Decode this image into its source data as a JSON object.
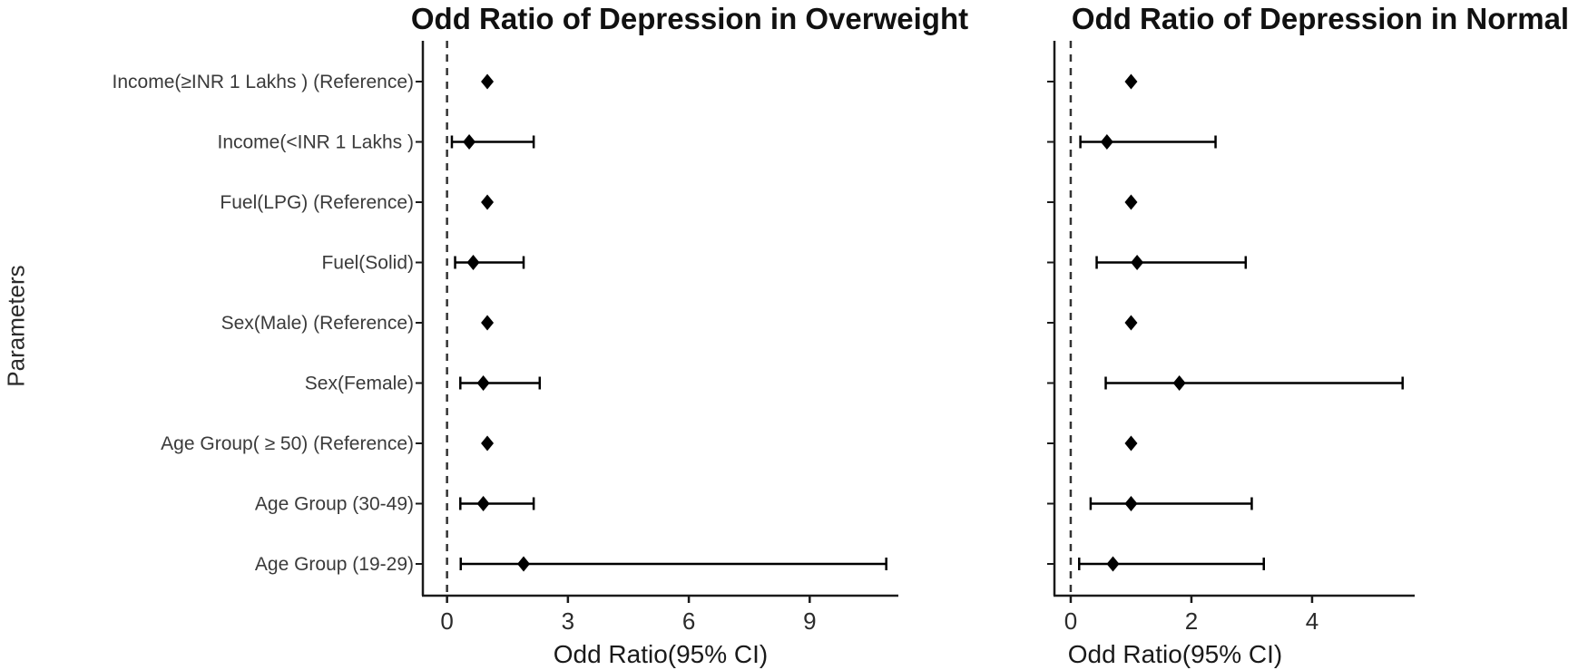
{
  "figure": {
    "y_axis_label": "Parameters"
  },
  "chart_data": [
    {
      "type": "forest",
      "title": "Odd Ratio of Depression in Overweight",
      "xlabel": "Odd Ratio(95% CI)",
      "ylabel": "Parameters",
      "x_ticks": [
        0,
        3,
        6,
        9
      ],
      "xlim": [
        -0.6,
        11.2
      ],
      "ref_line": {
        "x": 0,
        "style": "dashed"
      },
      "legend": "none",
      "grid": false,
      "rows": [
        {
          "category": "Income(≥INR 1 Lakhs ) (Reference)",
          "or": 1.0,
          "ci_low": null,
          "ci_high": null,
          "reference": true
        },
        {
          "category": "Income(<INR 1 Lakhs )",
          "or": 0.55,
          "ci_low": 0.12,
          "ci_high": 2.15,
          "reference": false
        },
        {
          "category": "Fuel(LPG) (Reference)",
          "or": 1.0,
          "ci_low": null,
          "ci_high": null,
          "reference": true
        },
        {
          "category": "Fuel(Solid)",
          "or": 0.65,
          "ci_low": 0.2,
          "ci_high": 1.9,
          "reference": false
        },
        {
          "category": "Sex(Male) (Reference)",
          "or": 1.0,
          "ci_low": null,
          "ci_high": null,
          "reference": true
        },
        {
          "category": "Sex(Female)",
          "or": 0.9,
          "ci_low": 0.33,
          "ci_high": 2.3,
          "reference": false
        },
        {
          "category": "Age Group( ≥ 50) (Reference)",
          "or": 1.0,
          "ci_low": null,
          "ci_high": null,
          "reference": true
        },
        {
          "category": "Age Group (30-49)",
          "or": 0.9,
          "ci_low": 0.33,
          "ci_high": 2.15,
          "reference": false
        },
        {
          "category": "Age Group (19-29)",
          "or": 1.9,
          "ci_low": 0.34,
          "ci_high": 10.9,
          "reference": false
        }
      ]
    },
    {
      "type": "forest",
      "title": "Odd Ratio of Depression in Normal",
      "xlabel": "Odd Ratio(95% CI)",
      "ylabel": "Parameters",
      "x_ticks": [
        0,
        2,
        4
      ],
      "xlim": [
        -0.27,
        5.7
      ],
      "ref_line": {
        "x": 0,
        "style": "dashed"
      },
      "legend": "none",
      "grid": false,
      "rows": [
        {
          "category": "Income(≥INR 1 Lakhs ) (Reference)",
          "or": 1.0,
          "ci_low": null,
          "ci_high": null,
          "reference": true
        },
        {
          "category": "Income(<INR 1 Lakhs )",
          "or": 0.6,
          "ci_low": 0.16,
          "ci_high": 2.4,
          "reference": false
        },
        {
          "category": "Fuel(LPG) (Reference)",
          "or": 1.0,
          "ci_low": null,
          "ci_high": null,
          "reference": true
        },
        {
          "category": "Fuel(Solid)",
          "or": 1.1,
          "ci_low": 0.43,
          "ci_high": 2.9,
          "reference": false
        },
        {
          "category": "Sex(Male) (Reference)",
          "or": 1.0,
          "ci_low": null,
          "ci_high": null,
          "reference": true
        },
        {
          "category": "Sex(Female)",
          "or": 1.8,
          "ci_low": 0.58,
          "ci_high": 5.5,
          "reference": false
        },
        {
          "category": "Age Group( ≥ 50) (Reference)",
          "or": 1.0,
          "ci_low": null,
          "ci_high": null,
          "reference": true
        },
        {
          "category": "Age Group (30-49)",
          "or": 1.0,
          "ci_low": 0.33,
          "ci_high": 3.0,
          "reference": false
        },
        {
          "category": "Age Group (19-29)",
          "or": 0.7,
          "ci_low": 0.14,
          "ci_high": 3.2,
          "reference": false
        }
      ]
    }
  ]
}
